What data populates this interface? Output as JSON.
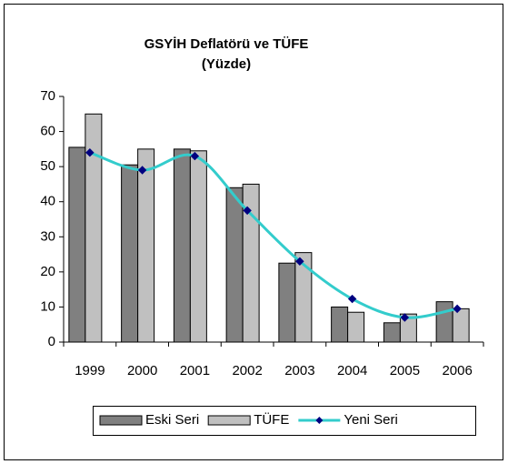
{
  "chart_data": {
    "type": "bar",
    "title": "GSYİH Deflatörü ve TÜFE (Yüzde)",
    "categories": [
      "1999",
      "2000",
      "2001",
      "2002",
      "2003",
      "2004",
      "2005",
      "2006"
    ],
    "series": [
      {
        "name": "Eski Seri",
        "type": "bar",
        "color": "#808080",
        "values": [
          55.5,
          50.5,
          55,
          44,
          22.5,
          10,
          5.5,
          11.5
        ]
      },
      {
        "name": "TÜFE",
        "type": "bar",
        "color": "#c0c0c0",
        "values": [
          65,
          55,
          54.5,
          45,
          25.5,
          8.5,
          8,
          9.5
        ]
      },
      {
        "name": "Yeni Seri",
        "type": "line",
        "color": "#33cccc",
        "marker_color": "#000080",
        "values": [
          54,
          49,
          53,
          37.5,
          23,
          12.3,
          7,
          9.5
        ]
      }
    ],
    "ylim": [
      0,
      70
    ],
    "yticks": [
      0,
      10,
      20,
      30,
      40,
      50,
      60,
      70
    ],
    "grid": false,
    "legend": "bottom"
  }
}
